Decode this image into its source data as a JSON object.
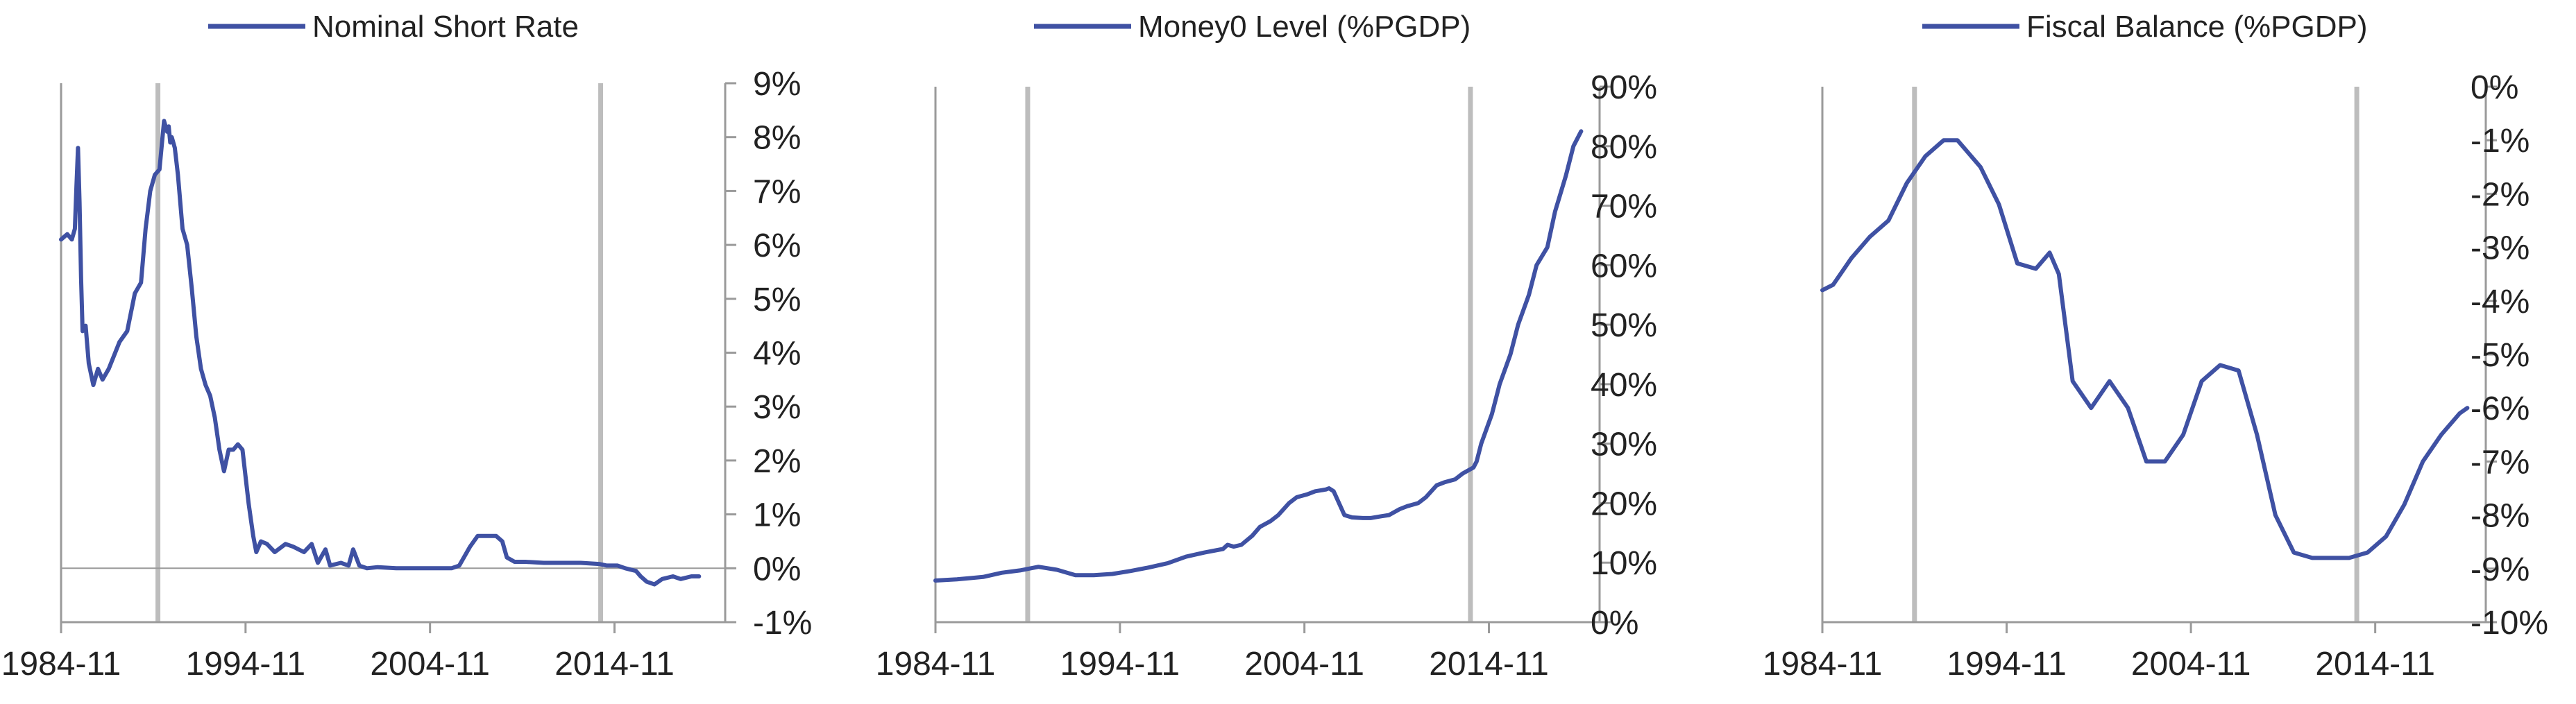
{
  "colors": {
    "series": "#3F51A3",
    "axis": "#9a9a9a",
    "marker_line": "#bdbdbd",
    "text": "#222222"
  },
  "chart_data": [
    {
      "type": "line",
      "title": "",
      "legend_position": "top-center",
      "grid": false,
      "x_axis": {
        "kind": "date",
        "range": [
          "1984-11",
          "2020-11"
        ],
        "tick_labels": [
          "1984-11",
          "1994-11",
          "2004-11",
          "2014-11"
        ],
        "tick_values": [
          "1984-11",
          "1994-11",
          "2004-11",
          "2014-11"
        ]
      },
      "y_axis": {
        "position": "right",
        "range": [
          -1,
          9
        ],
        "unit": "%",
        "tick_labels": [
          "9%",
          "8%",
          "7%",
          "6%",
          "5%",
          "4%",
          "3%",
          "2%",
          "1%",
          "0%",
          "-1%"
        ],
        "tick_values": [
          9,
          8,
          7,
          6,
          5,
          4,
          3,
          2,
          1,
          0,
          -1
        ]
      },
      "zero_line": true,
      "vertical_markers": [
        "1990-02",
        "2014-02"
      ],
      "series": [
        {
          "name": "Nominal Short Rate",
          "x": [
            "1984-11",
            "1985-03",
            "1985-06",
            "1985-08",
            "1985-09",
            "1985-10",
            "1985-11",
            "1985-12",
            "1986-01",
            "1986-03",
            "1986-05",
            "1986-08",
            "1986-11",
            "1987-02",
            "1987-06",
            "1988-01",
            "1988-06",
            "1988-11",
            "1989-03",
            "1989-06",
            "1989-09",
            "1989-12",
            "1990-03",
            "1990-06",
            "1990-08",
            "1990-09",
            "1990-10",
            "1990-11",
            "1991-01",
            "1991-03",
            "1991-06",
            "1991-09",
            "1991-12",
            "1992-03",
            "1992-06",
            "1992-09",
            "1992-12",
            "1993-03",
            "1993-06",
            "1993-09",
            "1993-12",
            "1994-03",
            "1994-06",
            "1994-09",
            "1995-01",
            "1995-04",
            "1995-06",
            "1995-09",
            "1996-01",
            "1996-06",
            "1997-01",
            "1997-06",
            "1998-01",
            "1998-06",
            "1998-10",
            "1999-03",
            "1999-06",
            "2000-01",
            "2000-06",
            "2000-09",
            "2001-01",
            "2001-06",
            "2002-01",
            "2003-01",
            "2004-01",
            "2005-01",
            "2005-06",
            "2006-01",
            "2006-06",
            "2007-01",
            "2007-06",
            "2008-01",
            "2008-06",
            "2008-10",
            "2009-01",
            "2009-06",
            "2010-01",
            "2011-01",
            "2012-01",
            "2013-01",
            "2014-01",
            "2014-06",
            "2015-01",
            "2015-06",
            "2016-01",
            "2016-04",
            "2016-08",
            "2017-01",
            "2017-06",
            "2018-01",
            "2018-06",
            "2019-01",
            "2019-06"
          ],
          "values": [
            6.1,
            6.2,
            6.1,
            6.3,
            7.1,
            7.8,
            6.8,
            5.4,
            4.4,
            4.5,
            3.8,
            3.4,
            3.7,
            3.5,
            3.7,
            4.2,
            4.4,
            5.1,
            5.3,
            6.3,
            7.0,
            7.3,
            7.4,
            8.3,
            8.1,
            8.2,
            7.9,
            8.0,
            7.8,
            7.3,
            6.3,
            6.0,
            5.2,
            4.3,
            3.7,
            3.4,
            3.2,
            2.8,
            2.2,
            1.8,
            2.2,
            2.2,
            2.3,
            2.2,
            1.2,
            0.6,
            0.3,
            0.5,
            0.45,
            0.3,
            0.45,
            0.4,
            0.3,
            0.45,
            0.1,
            0.35,
            0.05,
            0.1,
            0.05,
            0.35,
            0.05,
            0.0,
            0.02,
            0.0,
            0.0,
            0.0,
            0.0,
            0.0,
            0.05,
            0.4,
            0.6,
            0.6,
            0.6,
            0.5,
            0.2,
            0.12,
            0.12,
            0.1,
            0.1,
            0.1,
            0.08,
            0.05,
            0.05,
            0.0,
            -0.05,
            -0.15,
            -0.25,
            -0.3,
            -0.2,
            -0.15,
            -0.2,
            -0.15,
            -0.15
          ]
        }
      ]
    },
    {
      "type": "line",
      "title": "",
      "legend_position": "top-center",
      "grid": false,
      "x_axis": {
        "kind": "date",
        "range": [
          "1984-11",
          "2020-11"
        ],
        "tick_labels": [
          "1984-11",
          "1994-11",
          "2004-11",
          "2014-11"
        ],
        "tick_values": [
          "1984-11",
          "1994-11",
          "2004-11",
          "2014-11"
        ]
      },
      "y_axis": {
        "position": "right",
        "range": [
          0,
          90
        ],
        "unit": "%",
        "tick_labels": [
          "90%",
          "80%",
          "70%",
          "60%",
          "50%",
          "40%",
          "30%",
          "20%",
          "10%",
          "0%"
        ],
        "tick_values": [
          90,
          80,
          70,
          60,
          50,
          40,
          30,
          20,
          10,
          0
        ]
      },
      "zero_line": false,
      "vertical_markers": [
        "1989-11",
        "2013-11"
      ],
      "series": [
        {
          "name": "Money0 Level (%PGDP)",
          "x": [
            "1984-11",
            "1986-01",
            "1987-06",
            "1988-06",
            "1989-06",
            "1990-06",
            "1991-06",
            "1992-06",
            "1993-06",
            "1994-06",
            "1995-06",
            "1996-06",
            "1997-06",
            "1998-06",
            "1999-06",
            "2000-06",
            "2000-09",
            "2001-01",
            "2001-06",
            "2002-01",
            "2002-06",
            "2003-01",
            "2003-06",
            "2004-01",
            "2004-06",
            "2005-01",
            "2005-06",
            "2006-01",
            "2006-03",
            "2006-06",
            "2007-01",
            "2007-06",
            "2008-01",
            "2008-06",
            "2009-01",
            "2009-06",
            "2010-01",
            "2010-06",
            "2011-01",
            "2011-06",
            "2012-01",
            "2012-06",
            "2013-01",
            "2013-06",
            "2014-01",
            "2014-03",
            "2014-06",
            "2015-01",
            "2015-06",
            "2016-01",
            "2016-06",
            "2017-01",
            "2017-06",
            "2018-01",
            "2018-06",
            "2019-01",
            "2019-06",
            "2019-11"
          ],
          "values": [
            7.0,
            7.2,
            7.6,
            8.3,
            8.7,
            9.3,
            8.8,
            7.9,
            7.9,
            8.1,
            8.6,
            9.2,
            9.9,
            11.0,
            11.7,
            12.3,
            13.0,
            12.7,
            13.0,
            14.5,
            16.0,
            17.0,
            18.0,
            20.0,
            21.0,
            21.5,
            22.0,
            22.3,
            22.5,
            22.0,
            18.0,
            17.6,
            17.5,
            17.5,
            17.8,
            18.0,
            19.0,
            19.5,
            20.0,
            21.0,
            23.0,
            23.5,
            24.0,
            25.0,
            26.0,
            27.0,
            30.0,
            35.0,
            40.0,
            45.0,
            50.0,
            55.0,
            60.0,
            63.0,
            69.0,
            75.0,
            80.0,
            82.5
          ]
        }
      ]
    },
    {
      "type": "line",
      "title": "",
      "legend_position": "top-center",
      "grid": false,
      "x_axis": {
        "kind": "date",
        "range": [
          "1984-11",
          "2020-11"
        ],
        "tick_labels": [
          "1984-11",
          "1994-11",
          "2004-11",
          "2014-11"
        ],
        "tick_values": [
          "1984-11",
          "1994-11",
          "2004-11",
          "2014-11"
        ]
      },
      "y_axis": {
        "position": "right",
        "range": [
          -10,
          0
        ],
        "unit": "%",
        "tick_labels": [
          "0%",
          "-1%",
          "-2%",
          "-3%",
          "-4%",
          "-5%",
          "-6%",
          "-7%",
          "-8%",
          "-9%",
          "-10%"
        ],
        "tick_values": [
          0,
          -1,
          -2,
          -3,
          -4,
          -5,
          -6,
          -7,
          -8,
          -9,
          -10
        ]
      },
      "zero_line": false,
      "vertical_markers": [
        "1989-11",
        "2013-11"
      ],
      "series": [
        {
          "name": "Fiscal Balance (%PGDP)",
          "x": [
            "1984-11",
            "1985-06",
            "1986-06",
            "1987-06",
            "1988-06",
            "1989-06",
            "1990-06",
            "1991-06",
            "1992-03",
            "1993-06",
            "1994-06",
            "1995-06",
            "1996-06",
            "1997-03",
            "1997-09",
            "1998-06",
            "1999-06",
            "2000-06",
            "2001-06",
            "2002-06",
            "2003-06",
            "2004-06",
            "2005-06",
            "2006-06",
            "2007-06",
            "2008-06",
            "2009-06",
            "2010-06",
            "2011-06",
            "2012-06",
            "2013-06",
            "2014-06",
            "2015-06",
            "2016-06",
            "2017-06",
            "2018-06",
            "2019-06",
            "2019-11"
          ],
          "values": [
            -3.8,
            -3.7,
            -3.2,
            -2.8,
            -2.5,
            -1.8,
            -1.3,
            -1.0,
            -1.0,
            -1.5,
            -2.2,
            -3.3,
            -3.4,
            -3.1,
            -3.5,
            -5.5,
            -6.0,
            -5.5,
            -6.0,
            -7.0,
            -7.0,
            -6.5,
            -5.5,
            -5.2,
            -5.3,
            -6.5,
            -8.0,
            -8.7,
            -8.8,
            -8.8,
            -8.8,
            -8.7,
            -8.4,
            -7.8,
            -7.0,
            -6.5,
            -6.1,
            -6.0
          ]
        }
      ]
    }
  ]
}
